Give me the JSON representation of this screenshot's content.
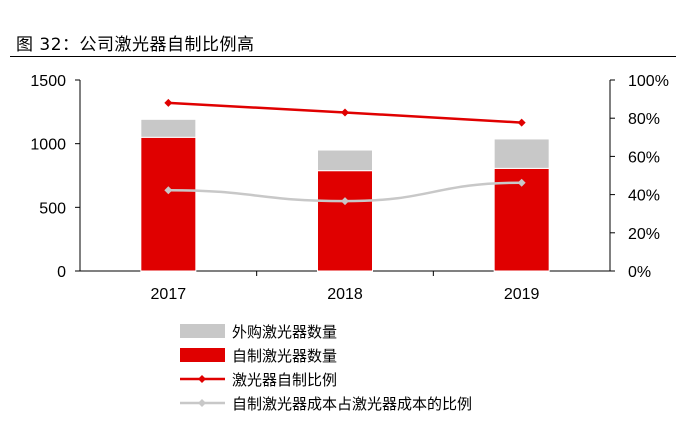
{
  "title": "图 32：公司激光器自制比例高",
  "chart_data": {
    "type": "bar",
    "stacked": true,
    "categories": [
      "2017",
      "2018",
      "2019"
    ],
    "series": [
      {
        "name": "自制激光器数量",
        "kind": "bar",
        "axis": "left",
        "color": "#e00000",
        "values": [
          1050,
          788,
          806
        ]
      },
      {
        "name": "外购激光器数量",
        "kind": "bar",
        "axis": "left",
        "color": "#c8c8c8",
        "values": [
          141,
          162,
          231
        ]
      },
      {
        "name": "激光器自制比例",
        "kind": "line",
        "axis": "right",
        "color": "#e00000",
        "values": [
          0.88,
          0.83,
          0.777
        ]
      },
      {
        "name": "自制激光器成本占激光器成本的比例",
        "kind": "line",
        "axis": "right",
        "color": "#c8c8c8",
        "values": [
          0.423,
          0.366,
          0.462
        ]
      }
    ],
    "left_axis": {
      "ylim": [
        0,
        1500
      ],
      "ticks": [
        "0",
        "500",
        "1000",
        "1500"
      ]
    },
    "right_axis": {
      "ylim": [
        0,
        1
      ],
      "ticks": [
        "0%",
        "20%",
        "40%",
        "60%",
        "80%",
        "100%"
      ]
    },
    "legend_order": [
      "外购激光器数量",
      "自制激光器数量",
      "激光器自制比例",
      "自制激光器成本占激光器成本的比例"
    ],
    "legend_position": "bottom",
    "grid": false
  }
}
